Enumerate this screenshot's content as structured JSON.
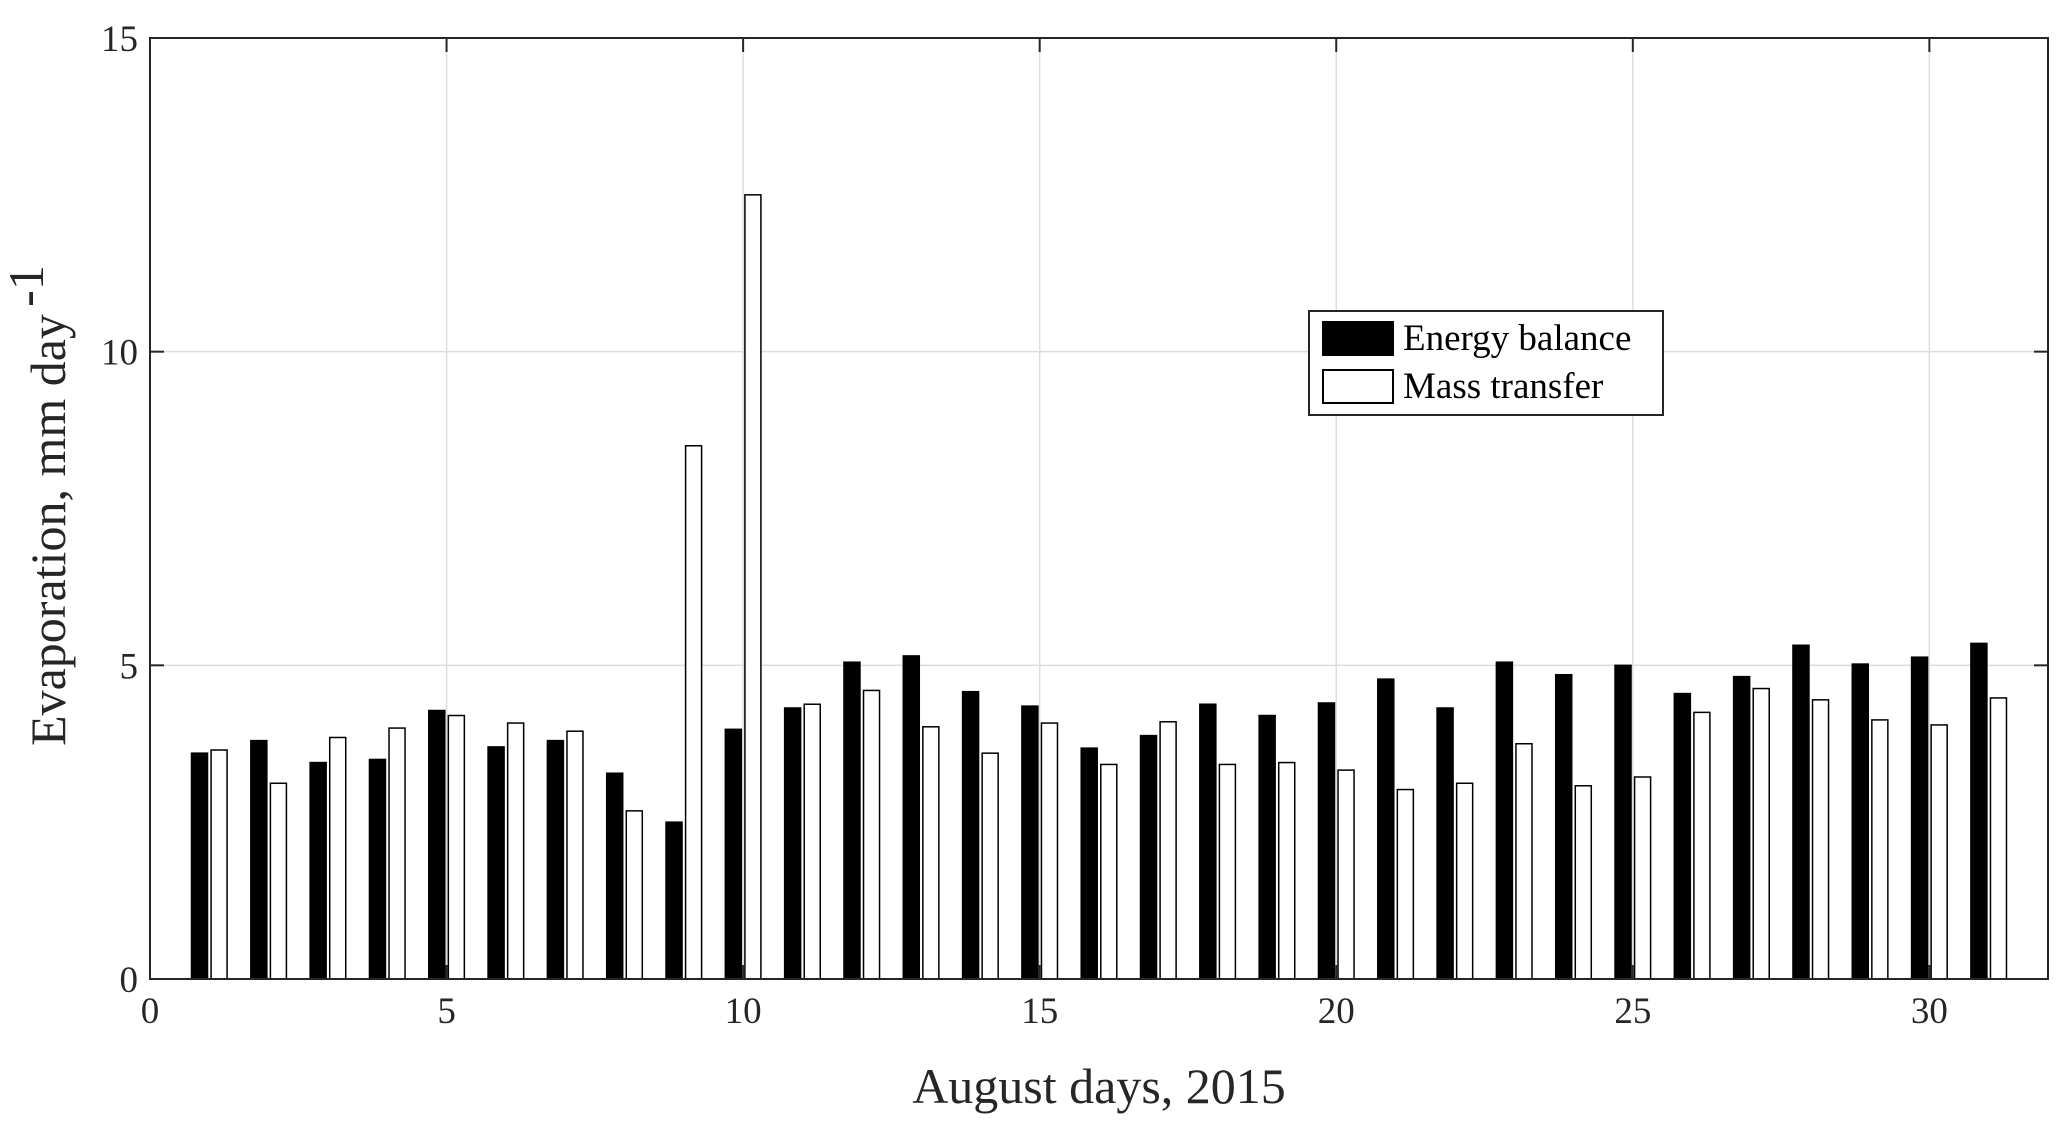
{
  "chart_data": {
    "type": "bar",
    "xlabel": "August days, 2015",
    "ylabel": "Evaporation, mm day",
    "ylabel_superscript": "-1",
    "xlim": [
      0,
      32
    ],
    "ylim": [
      0,
      15
    ],
    "xticks": [
      0,
      5,
      10,
      15,
      20,
      25,
      30
    ],
    "yticks": [
      0,
      5,
      10,
      15
    ],
    "grid": true,
    "legend_position": "upper-right",
    "x": [
      1,
      2,
      3,
      4,
      5,
      6,
      7,
      8,
      9,
      10,
      11,
      12,
      13,
      14,
      15,
      16,
      17,
      18,
      19,
      20,
      21,
      22,
      23,
      24,
      25,
      26,
      27,
      28,
      29,
      30,
      31
    ],
    "series": [
      {
        "name": "Energy balance",
        "color": "#000000",
        "values": [
          3.6,
          3.8,
          3.45,
          3.5,
          4.28,
          3.7,
          3.8,
          3.28,
          2.5,
          3.98,
          4.32,
          5.05,
          5.15,
          4.58,
          4.35,
          3.68,
          3.88,
          4.38,
          4.2,
          4.4,
          4.78,
          4.32,
          5.05,
          4.85,
          5.0,
          4.55,
          4.82,
          5.32,
          5.02,
          5.13,
          5.35
        ]
      },
      {
        "name": "Mass transfer",
        "color": "#ffffff",
        "values": [
          3.65,
          3.12,
          3.85,
          4.0,
          4.2,
          4.08,
          3.95,
          2.68,
          8.5,
          12.5,
          4.38,
          4.6,
          4.02,
          3.6,
          4.08,
          3.42,
          4.1,
          3.42,
          3.45,
          3.33,
          3.02,
          3.12,
          3.75,
          3.08,
          3.22,
          4.25,
          4.63,
          4.45,
          4.13,
          4.05,
          4.48
        ]
      }
    ]
  }
}
